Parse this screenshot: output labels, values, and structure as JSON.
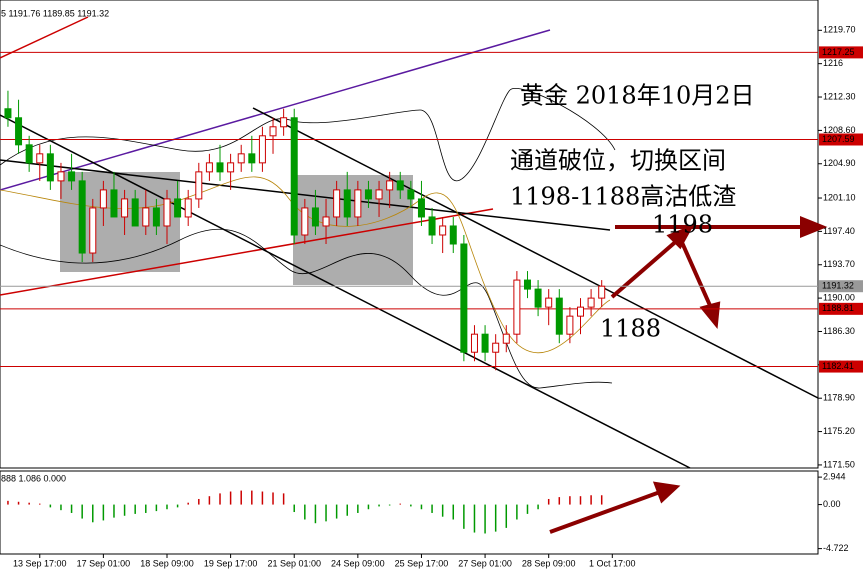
{
  "chart_data": {
    "type": "candlestick",
    "header": "5 1191.76 1189.85 1191.32",
    "annotations": [
      "黄金  2018年10月2日",
      "通道破位，切换区间",
      "1198-1188高沽低渣",
      "1198",
      "1188"
    ],
    "up_color": "#cc0000",
    "down_color": "#009900",
    "candles": [
      [
        1211,
        1213,
        1209,
        1210
      ],
      [
        1210,
        1212,
        1206,
        1207
      ],
      [
        1207,
        1208,
        1204,
        1205
      ],
      [
        1205,
        1207,
        1203,
        1206
      ],
      [
        1206,
        1207,
        1202,
        1203
      ],
      [
        1203,
        1205,
        1201,
        1204
      ],
      [
        1204,
        1206,
        1202,
        1203
      ],
      [
        1203,
        1204,
        1194,
        1195
      ],
      [
        1195,
        1201,
        1194,
        1200
      ],
      [
        1200,
        1203,
        1198,
        1202
      ],
      [
        1202,
        1204,
        1199,
        1199
      ],
      [
        1199,
        1202,
        1197,
        1201
      ],
      [
        1201,
        1202,
        1198,
        1198
      ],
      [
        1198,
        1202,
        1197,
        1200
      ],
      [
        1200,
        1201,
        1197,
        1198
      ],
      [
        1198,
        1202,
        1196,
        1201
      ],
      [
        1201,
        1203,
        1199,
        1199
      ],
      [
        1199,
        1202,
        1198,
        1201
      ],
      [
        1201,
        1205,
        1200,
        1204
      ],
      [
        1204,
        1206,
        1203,
        1205
      ],
      [
        1205,
        1207,
        1203,
        1204
      ],
      [
        1204,
        1206,
        1202,
        1205
      ],
      [
        1205,
        1207,
        1204,
        1206
      ],
      [
        1206,
        1208,
        1204,
        1205
      ],
      [
        1205,
        1209,
        1204,
        1208
      ],
      [
        1208,
        1210,
        1206,
        1209
      ],
      [
        1209,
        1211,
        1208,
        1210
      ],
      [
        1210,
        1211,
        1196,
        1197
      ],
      [
        1197,
        1201,
        1196,
        1200
      ],
      [
        1200,
        1202,
        1197,
        1198
      ],
      [
        1198,
        1201,
        1196,
        1199
      ],
      [
        1199,
        1203,
        1198,
        1202
      ],
      [
        1202,
        1204,
        1198,
        1199
      ],
      [
        1199,
        1203,
        1198,
        1202
      ],
      [
        1202,
        1203,
        1200,
        1201
      ],
      [
        1201,
        1203,
        1199,
        1202
      ],
      [
        1202,
        1204,
        1200,
        1203
      ],
      [
        1203,
        1204,
        1201,
        1202
      ],
      [
        1202,
        1203,
        1200,
        1201
      ],
      [
        1201,
        1203,
        1198,
        1199
      ],
      [
        1199,
        1200,
        1196,
        1197
      ],
      [
        1197,
        1199,
        1195,
        1198
      ],
      [
        1198,
        1199,
        1195,
        1196
      ],
      [
        1196,
        1197,
        1183,
        1184
      ],
      [
        1184,
        1187,
        1183,
        1186
      ],
      [
        1186,
        1187,
        1183,
        1184
      ],
      [
        1184,
        1186,
        1182,
        1185
      ],
      [
        1185,
        1187,
        1184,
        1186
      ],
      [
        1186,
        1193,
        1185,
        1192
      ],
      [
        1192,
        1193,
        1190,
        1191
      ],
      [
        1191,
        1192,
        1188,
        1189
      ],
      [
        1189,
        1191,
        1187,
        1190
      ],
      [
        1190,
        1191,
        1185,
        1186
      ],
      [
        1186,
        1189,
        1185,
        1188
      ],
      [
        1188,
        1190,
        1186,
        1189
      ],
      [
        1189,
        1191,
        1188,
        1190
      ],
      [
        1190,
        1192,
        1189,
        1191.32
      ]
    ],
    "xlim": [
      -0.75,
      76.4
    ],
    "xticks": [
      {
        "value": 3,
        "label": "13 Sep 17:00"
      },
      {
        "value": 9,
        "label": "17 Sep 01:00"
      },
      {
        "value": 15,
        "label": "18 Sep 09:00"
      },
      {
        "value": 21,
        "label": "19 Sep 17:00"
      },
      {
        "value": 27,
        "label": "21 Sep 01:00"
      },
      {
        "value": 33,
        "label": "24 Sep 09:00"
      },
      {
        "value": 39,
        "label": "25 Sep 17:00"
      },
      {
        "value": 45,
        "label": "27 Sep 01:00"
      },
      {
        "value": 51,
        "label": "28 Sep 09:00"
      },
      {
        "value": 57,
        "label": "1 Oct 17:00"
      }
    ],
    "ylim": [
      1171.16,
      1223.06
    ],
    "yticks": [
      {
        "value": 1219.7,
        "label": "1219.70"
      },
      1216,
      {
        "value": 1212.3,
        "label": "1212.30"
      },
      {
        "value": 1208.6,
        "label": "1208.60"
      },
      {
        "value": 1204.9,
        "label": "1204.90"
      },
      {
        "value": 1201.1,
        "label": "1201.10"
      },
      {
        "value": 1197.4,
        "label": "1197.40"
      },
      {
        "value": 1193.7,
        "label": "1193.70"
      },
      {
        "value": 1190,
        "label": "1190.00"
      },
      {
        "value": 1186.3,
        "label": "1186.30"
      },
      {
        "value": 1182.6,
        "label": "1182.60"
      },
      {
        "value": 1178.9,
        "label": "1178.90"
      },
      {
        "value": 1175.2,
        "label": "1175.20"
      },
      {
        "value": 1171.5,
        "label": "1171.50"
      }
    ],
    "levels": [
      {
        "value": 1217.25,
        "label": "1217.25",
        "color": "#cc0000"
      },
      {
        "value": 1207.59,
        "label": "1207.59",
        "color": "#cc0000"
      },
      {
        "value": 1191.32,
        "label": "1191.32",
        "color": "#999999"
      },
      {
        "value": 1188.81,
        "label": "1188.81",
        "color": "#cc0000"
      },
      {
        "value": 1182.41,
        "label": "1182.41",
        "color": "#cc0000"
      }
    ],
    "macd": {
      "header": "888 1.086 0.000",
      "values": [
        0.4,
        0.3,
        0.2,
        0.1,
        -0.3,
        -0.6,
        -0.9,
        -1.5,
        -1.9,
        -1.7,
        -1.4,
        -1.2,
        -1,
        -0.9,
        -0.7,
        -0.5,
        -0.3,
        0.2,
        0.6,
        0.9,
        1.2,
        1.4,
        1.5,
        1.5,
        1.4,
        1.3,
        1.2,
        -0.8,
        -1.6,
        -2,
        -1.8,
        -1.5,
        -1.2,
        -0.9,
        -0.5,
        -0.2,
        -0.1,
        0.1,
        -0.2,
        -0.5,
        -0.9,
        -1.3,
        -1.6,
        -2.6,
        -3,
        -3.1,
        -2.9,
        -2.5,
        -1.6,
        -1,
        -0.5,
        0.6,
        0.8,
        0.9,
        0.9,
        1,
        1
      ],
      "ylim": [
        -5.3,
        3.6
      ],
      "yticks": [
        {
          "value": 2.944,
          "label": "2.944"
        },
        {
          "value": 0,
          "label": "0.00"
        },
        {
          "value": -4.722,
          "label": "-4.722"
        }
      ]
    }
  }
}
